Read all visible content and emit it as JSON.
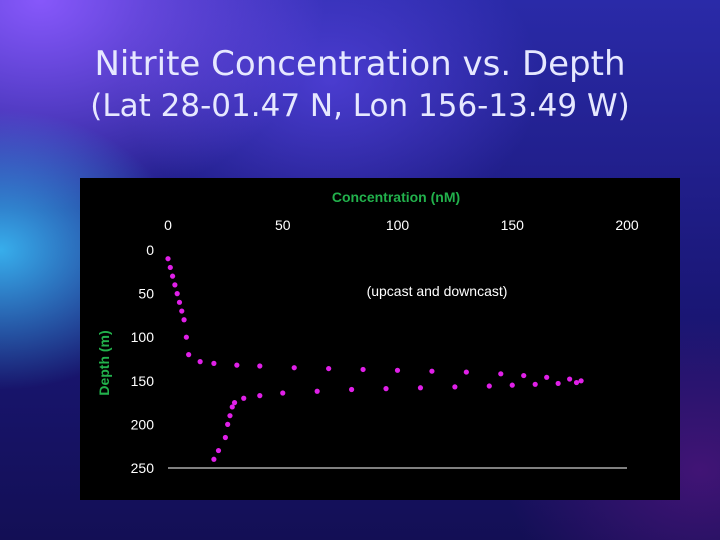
{
  "title": "Nitrite Concentration vs. Depth",
  "subtitle": "(Lat 28-01.47 N, Lon 156-13.49 W)",
  "colors": {
    "axis_label": "#22b14c",
    "data": "#e020e8",
    "tick": "#ffffff",
    "background": "#000000"
  },
  "chart_data": {
    "type": "scatter",
    "title": "",
    "xlabel": "Concentration (nM)",
    "ylabel": "Depth (m)",
    "xlim": [
      0,
      200
    ],
    "ylim": [
      0,
      250
    ],
    "x_axis_position": "top",
    "y_inverted": true,
    "grid": false,
    "x_ticks": [
      0,
      50,
      100,
      150,
      200
    ],
    "y_ticks": [
      0,
      50,
      100,
      150,
      200,
      250
    ],
    "annotation": "(upcast and downcast)",
    "series": [
      {
        "x": [
          0,
          1,
          2,
          3,
          4,
          5,
          6,
          7,
          8,
          9,
          14,
          20,
          30,
          40,
          55,
          70,
          85,
          100,
          115,
          130,
          145,
          155,
          165,
          175,
          180,
          178,
          170,
          160,
          150,
          140,
          125,
          110,
          95,
          80,
          65,
          50,
          40,
          33,
          29,
          28,
          27,
          26,
          25,
          22,
          20
        ],
        "y": [
          10,
          20,
          30,
          40,
          50,
          60,
          70,
          80,
          100,
          120,
          128,
          130,
          132,
          133,
          135,
          136,
          137,
          138,
          139,
          140,
          142,
          144,
          146,
          148,
          150,
          152,
          153,
          154,
          155,
          156,
          157,
          158,
          159,
          160,
          162,
          164,
          167,
          170,
          175,
          180,
          190,
          200,
          215,
          230,
          240
        ]
      }
    ]
  }
}
